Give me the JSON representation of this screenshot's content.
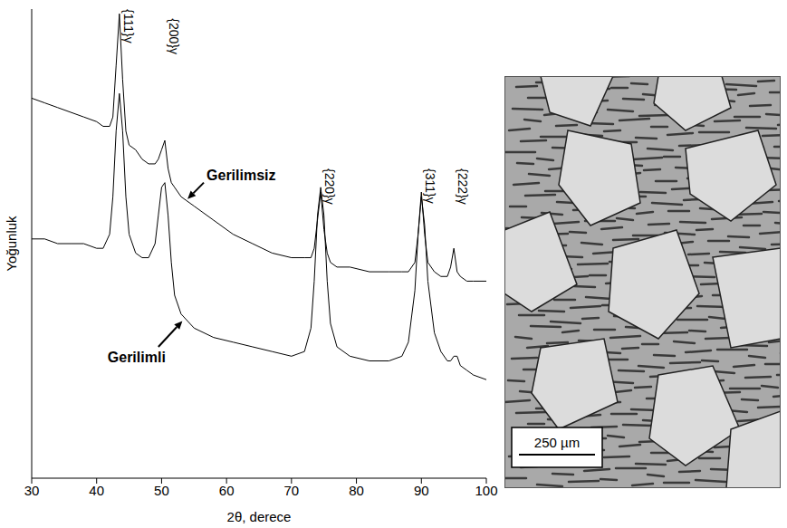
{
  "chart_data": {
    "type": "line",
    "x_label": "2θ, derece",
    "y_label": "Yoğunluk",
    "x": [
      30,
      32,
      34,
      36,
      38,
      40,
      41,
      42,
      42.5,
      43,
      43.5,
      44,
      44.5,
      45,
      46,
      47,
      48,
      49,
      49.5,
      50,
      50.5,
      51,
      51.5,
      52,
      53,
      55,
      58,
      61,
      64,
      67,
      70,
      72,
      73,
      73.5,
      74,
      74.5,
      75,
      75.5,
      76,
      77,
      79,
      82,
      85,
      87,
      88,
      89,
      89.5,
      90,
      90.5,
      91,
      92,
      93,
      94,
      94.5,
      95,
      95.5,
      96,
      97,
      98,
      100
    ],
    "series": [
      {
        "name": "Gerilimsiz",
        "color": "#000000",
        "values": [
          81,
          80,
          79,
          78,
          77,
          76,
          75,
          75,
          77,
          88,
          99,
          85,
          74,
          71,
          70,
          68,
          67,
          67,
          68,
          70,
          72,
          66,
          63,
          62,
          60,
          58,
          55,
          52,
          50,
          48,
          47,
          47,
          47,
          49,
          55,
          61,
          53,
          48,
          46,
          45,
          45,
          44,
          44,
          44,
          44,
          46,
          52,
          61,
          52,
          46,
          44,
          43,
          43,
          45,
          49,
          44,
          43,
          42,
          42,
          42
        ]
      },
      {
        "name": "Gerilimli",
        "color": "#000000",
        "values": [
          51,
          51,
          50,
          50,
          50,
          49,
          49,
          52,
          60,
          74,
          82,
          74,
          60,
          52,
          48,
          47,
          47,
          50,
          56,
          62,
          63,
          56,
          46,
          39,
          35,
          32,
          30,
          29,
          28,
          27,
          26,
          27,
          32,
          42,
          56,
          62,
          56,
          42,
          33,
          28,
          26,
          25,
          25,
          26,
          29,
          40,
          52,
          60,
          54,
          42,
          31,
          27,
          25,
          25,
          26,
          26,
          24,
          23,
          22,
          21
        ]
      }
    ],
    "xlim": [
      30,
      100
    ],
    "xticks": [
      30,
      40,
      50,
      60,
      70,
      80,
      90,
      100
    ],
    "ylim": [
      0,
      100
    ],
    "yticks": [],
    "tick_labels": "x",
    "grid": false,
    "peak_labels": [
      {
        "text": "{111}γ",
        "x": 43.5,
        "y": 100
      },
      {
        "text": "{200}γ",
        "x": 50.5,
        "y": 98
      },
      {
        "text": "{220}γ",
        "x": 74.5,
        "y": 66
      },
      {
        "text": "{311}γ",
        "x": 90,
        "y": 66
      },
      {
        "text": "{222}γ",
        "x": 95,
        "y": 66
      }
    ],
    "annotations": [
      {
        "text": "Gerilimsiz",
        "x": 56.5,
        "y": 63,
        "arrow_to": [
          54,
          59.5
        ]
      },
      {
        "text": "Gerilimli",
        "x": 49.5,
        "y": 28,
        "arrow_to": [
          53.2,
          33.5
        ]
      }
    ]
  },
  "image": {
    "scale_bar_label": "250 µm"
  }
}
